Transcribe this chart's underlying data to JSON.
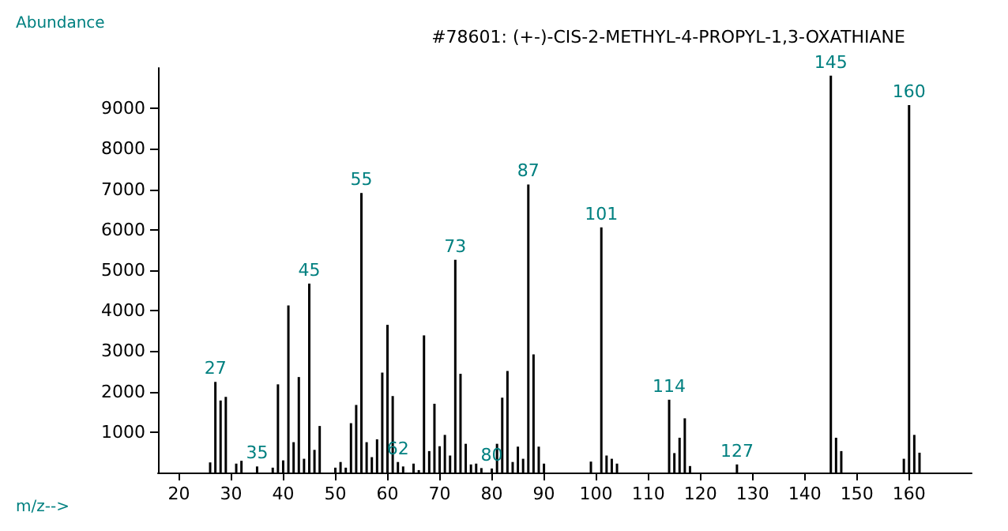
{
  "chart_data": {
    "type": "bar",
    "title": "#78601: (+-)-CIS-2-METHYL-4-PROPYL-1,3-OXATHIANE",
    "xlabel": "m/z-->",
    "ylabel": "Abundance",
    "x": [
      26,
      27,
      28,
      29,
      31,
      32,
      35,
      38,
      39,
      40,
      41,
      42,
      43,
      44,
      45,
      46,
      47,
      50,
      51,
      52,
      53,
      54,
      55,
      56,
      57,
      58,
      59,
      60,
      61,
      62,
      63,
      65,
      66,
      67,
      68,
      69,
      70,
      71,
      72,
      73,
      74,
      75,
      76,
      77,
      78,
      80,
      81,
      82,
      83,
      84,
      85,
      86,
      87,
      88,
      89,
      90,
      99,
      101,
      102,
      103,
      104,
      114,
      115,
      116,
      117,
      118,
      127,
      145,
      146,
      147,
      159,
      160,
      161,
      162
    ],
    "values": [
      250,
      2240,
      1780,
      1870,
      220,
      290,
      150,
      120,
      2180,
      300,
      4130,
      750,
      2360,
      340,
      4670,
      560,
      1150,
      120,
      260,
      120,
      1220,
      1670,
      6910,
      750,
      380,
      820,
      2470,
      3650,
      1890,
      260,
      150,
      220,
      60,
      3390,
      530,
      1700,
      650,
      930,
      420,
      5260,
      2440,
      710,
      200,
      220,
      110,
      100,
      710,
      1850,
      2510,
      260,
      640,
      340,
      7120,
      2920,
      640,
      220,
      270,
      6060,
      420,
      340,
      220,
      1800,
      480,
      860,
      1340,
      160,
      200,
      9810,
      860,
      530,
      340,
      9080,
      930,
      490
    ],
    "color": "#000000",
    "annotations": [
      {
        "text": "27",
        "x": 27,
        "y": 2240
      },
      {
        "text": "35",
        "x": 35,
        "y": 150
      },
      {
        "text": "45",
        "x": 45,
        "y": 4670
      },
      {
        "text": "55",
        "x": 55,
        "y": 6910
      },
      {
        "text": "62",
        "x": 62,
        "y": 260
      },
      {
        "text": "73",
        "x": 73,
        "y": 5260
      },
      {
        "text": "80",
        "x": 80,
        "y": 100
      },
      {
        "text": "87",
        "x": 87,
        "y": 7120
      },
      {
        "text": "101",
        "x": 101,
        "y": 6060
      },
      {
        "text": "114",
        "x": 114,
        "y": 1800
      },
      {
        "text": "127",
        "x": 127,
        "y": 200
      },
      {
        "text": "145",
        "x": 145,
        "y": 9810
      },
      {
        "text": "160",
        "x": 160,
        "y": 9080
      }
    ],
    "xlim": [
      16,
      172
    ],
    "xticks": [
      20,
      30,
      40,
      50,
      60,
      70,
      80,
      90,
      100,
      110,
      120,
      130,
      140,
      150,
      160
    ],
    "ylim": [
      0,
      10000
    ],
    "yticks": [
      1000,
      2000,
      3000,
      4000,
      5000,
      6000,
      7000,
      8000,
      9000
    ],
    "grid": false
  }
}
